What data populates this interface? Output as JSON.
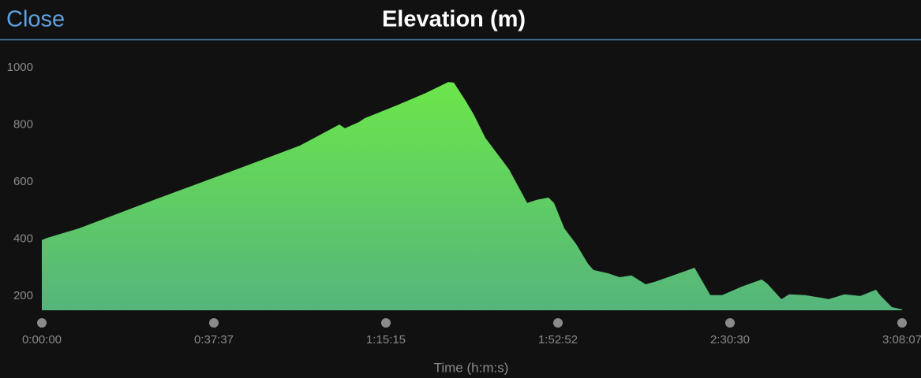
{
  "ui": {
    "close_button": "Close"
  },
  "chart_data": {
    "type": "area",
    "title": "Elevation (m)",
    "x_label": "Time (h:m:s)",
    "x": [
      0,
      72,
      487,
      1522,
      2558,
      3386,
      3904,
      3977,
      4163,
      4236,
      4629,
      5043,
      5333,
      5406,
      5561,
      5665,
      5820,
      5975,
      6130,
      6369,
      6493,
      6648,
      6721,
      6856,
      7011,
      7167,
      7239,
      7426,
      7581,
      7737,
      7923,
      8047,
      8565,
      8772,
      8927,
      9186,
      9445,
      9517,
      9704,
      9807,
      10014,
      10221,
      10325,
      10532,
      10739,
      10946,
      10998,
      11153,
      11287
    ],
    "series": [
      {
        "name": "Elevation",
        "color": "#6be64a",
        "values": [
          396,
          404,
          437,
          542,
          644,
          727,
          801,
          788,
          810,
          823,
          865,
          912,
          950,
          948,
          884,
          837,
          754,
          699,
          644,
          526,
          537,
          545,
          526,
          437,
          382,
          313,
          291,
          280,
          266,
          272,
          241,
          250,
          299,
          203,
          203,
          233,
          258,
          244,
          189,
          206,
          203,
          194,
          189,
          206,
          200,
          222,
          203,
          161,
          153
        ]
      }
    ],
    "xlim": [
      0,
      11287.5
    ],
    "xticks": [
      {
        "value": 0,
        "label": "0:00:00"
      },
      {
        "value": 2257.5,
        "label": "0:37:37"
      },
      {
        "value": 4515,
        "label": "1:15:15"
      },
      {
        "value": 6772.5,
        "label": "1:52:52"
      },
      {
        "value": 9030,
        "label": "2:30:30"
      },
      {
        "value": 11287.5,
        "label": "3:08:07"
      }
    ],
    "ylim": [
      150,
      1000
    ],
    "yticks": [
      200,
      400,
      600,
      800,
      1000
    ],
    "grid": false
  }
}
